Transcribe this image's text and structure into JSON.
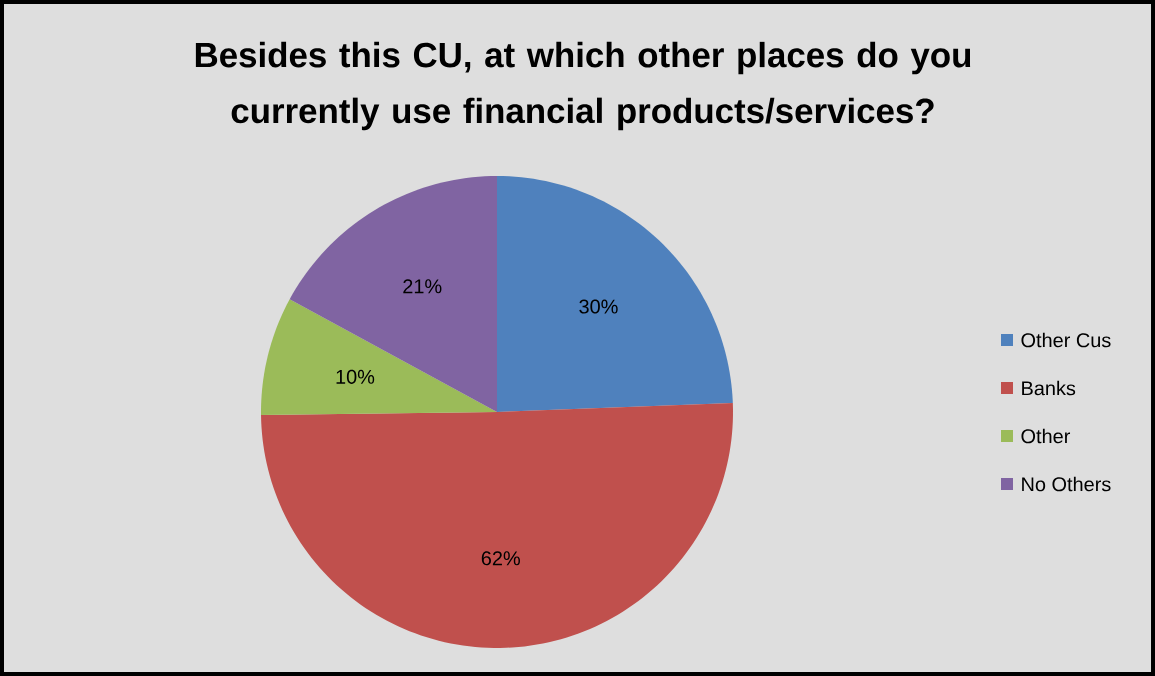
{
  "chart_data": {
    "type": "pie",
    "title": "Besides this CU, at which other places do you currently use financial products/services?",
    "categories": [
      "Other Cus",
      "Banks",
      "Other",
      "No Others"
    ],
    "values": [
      30,
      62,
      10,
      21
    ],
    "value_labels": [
      "30%",
      "62%",
      "10%",
      "21%"
    ],
    "colors": [
      "#4f81bd",
      "#c0504d",
      "#9bbb59",
      "#8064a2"
    ],
    "legend": "right"
  }
}
